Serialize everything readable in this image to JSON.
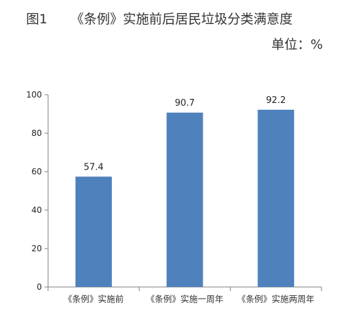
{
  "header": {
    "figure_label": "图1",
    "title": "《条例》实施前后居民垃圾分类满意度",
    "unit": "单位：%"
  },
  "chart_data": {
    "type": "bar",
    "title": "《条例》实施前后居民垃圾分类满意度",
    "categories": [
      "《条例》实施前",
      "《条例》实施一周年",
      "《条例》实施两周年"
    ],
    "values": [
      57.4,
      90.7,
      92.2
    ],
    "data_labels": [
      "57.4",
      "90.7",
      "92.2"
    ],
    "xlabel": "",
    "ylabel": "",
    "ylim": [
      0,
      100
    ],
    "yticks": [
      0,
      20,
      40,
      60,
      80,
      100
    ],
    "grid": false,
    "legend": "none",
    "bar_color": "#4f81bd"
  }
}
